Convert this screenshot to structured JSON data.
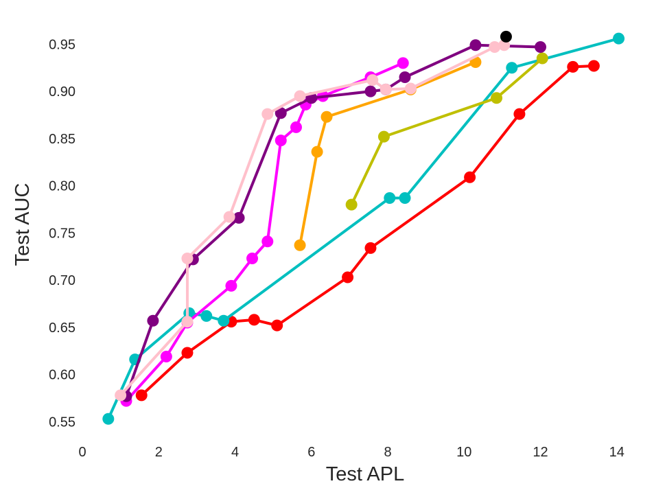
{
  "chart_data": {
    "type": "line",
    "title": "",
    "xlabel": "Test APL",
    "ylabel": "Test AUC",
    "xlim": [
      0,
      14.4
    ],
    "ylim": [
      0.535,
      0.975
    ],
    "xticks": [
      0,
      2,
      4,
      6,
      8,
      10,
      12,
      14
    ],
    "yticks": [
      0.55,
      0.6,
      0.65,
      0.7,
      0.75,
      0.8,
      0.85,
      0.9,
      0.95
    ],
    "ytick_labels": [
      "0.55",
      "0.60",
      "0.65",
      "0.70",
      "0.75",
      "0.80",
      "0.85",
      "0.90",
      "0.95"
    ],
    "grid": false,
    "legend": "none",
    "series": [
      {
        "color": "#ff0000",
        "x": [
          1.55,
          2.75,
          3.9,
          4.5,
          5.1,
          6.95,
          7.55,
          10.15,
          11.45,
          12.85,
          13.4
        ],
        "y": [
          0.578,
          0.623,
          0.656,
          0.658,
          0.652,
          0.703,
          0.734,
          0.809,
          0.876,
          0.926,
          0.927
        ]
      },
      {
        "color": "#00bfbf",
        "x": [
          0.68,
          1.38,
          2.8,
          3.25,
          3.7,
          8.05,
          8.45,
          11.25,
          14.05
        ],
        "y": [
          0.553,
          0.616,
          0.665,
          0.662,
          0.657,
          0.787,
          0.787,
          0.925,
          0.956
        ]
      },
      {
        "color": "#bfbf00",
        "x": [
          7.05,
          7.9,
          10.85,
          12.05
        ],
        "y": [
          0.78,
          0.852,
          0.893,
          0.935
        ]
      },
      {
        "color": "#ffa500",
        "x": [
          5.7,
          6.15,
          6.4,
          8.6,
          10.3
        ],
        "y": [
          0.737,
          0.836,
          0.873,
          0.902,
          0.931
        ]
      },
      {
        "color": "#ff00ff",
        "x": [
          1.15,
          2.2,
          2.75,
          3.9,
          4.45,
          4.85,
          5.2,
          5.6,
          5.85,
          6.3,
          7.55,
          8.4
        ],
        "y": [
          0.572,
          0.619,
          0.655,
          0.694,
          0.723,
          0.741,
          0.848,
          0.862,
          0.886,
          0.895,
          0.915,
          0.93
        ]
      },
      {
        "color": "#800080",
        "x": [
          1.15,
          1.85,
          2.9,
          4.1,
          5.2,
          6.0,
          7.55,
          7.95,
          8.45,
          10.3,
          12.0
        ],
        "y": [
          0.577,
          0.657,
          0.722,
          0.766,
          0.877,
          0.893,
          0.9,
          0.902,
          0.915,
          0.949,
          0.947
        ]
      },
      {
        "color": "#ffc0cb",
        "x": [
          1.0,
          2.75,
          2.75,
          3.85,
          4.85,
          5.7,
          7.6,
          7.95,
          8.6,
          10.8,
          11.05
        ],
        "y": [
          0.578,
          0.656,
          0.723,
          0.767,
          0.876,
          0.895,
          0.912,
          0.902,
          0.903,
          0.947,
          0.949
        ]
      },
      {
        "color": "#000000",
        "x": [
          11.1
        ],
        "y": [
          0.958
        ]
      }
    ]
  }
}
